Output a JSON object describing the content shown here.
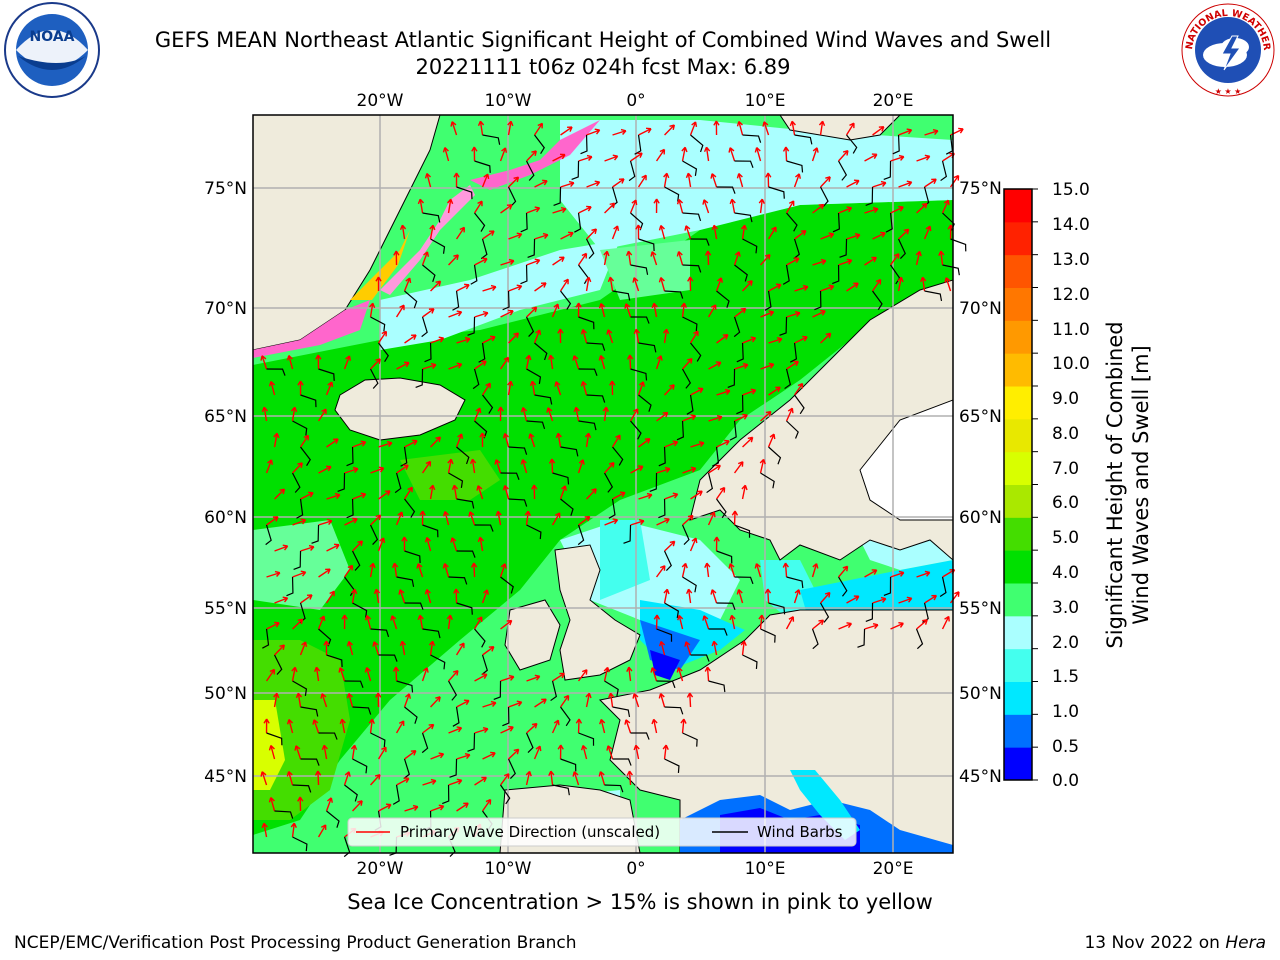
{
  "header": {
    "title": "GEFS MEAN Northeast Atlantic Significant Height of Combined Wind Waves and Swell",
    "subtitle": "20221111 t06z 024h fcst   Max: 6.89"
  },
  "logos": {
    "left": {
      "name": "noaa-logo",
      "text": "NOAA",
      "ring_text": "NATIONAL OCEANIC AND ATMOSPHERIC ADMINISTRATION · U.S. DEPARTMENT OF COMMERCE"
    },
    "right": {
      "name": "nws-logo",
      "ring_text": "NATIONAL WEATHER SERVICE"
    }
  },
  "map": {
    "lon_labels": [
      "20°W",
      "10°W",
      "0°",
      "10°E",
      "20°E"
    ],
    "lat_labels": [
      "75°N",
      "70°N",
      "65°N",
      "60°N",
      "55°N",
      "50°N",
      "45°N"
    ],
    "legend": [
      {
        "label": "Primary Wave Direction (unscaled)",
        "color": "#ff0000"
      },
      {
        "label": "Wind Barbs",
        "color": "#000000"
      }
    ],
    "colors": {
      "land": "#efebdc",
      "grid": "#b0b0b0",
      "ocean_low": "#40ff40",
      "ocean_mid": "#00e000",
      "ocean_high": "#66ff99"
    }
  },
  "colorbar": {
    "labels": [
      "15.0",
      "14.0",
      "13.0",
      "12.0",
      "11.0",
      "10.0",
      "9.0",
      "8.0",
      "7.0",
      "6.0",
      "5.0",
      "4.0",
      "3.0",
      "2.0",
      "1.5",
      "1.0",
      "0.5",
      "0.0"
    ],
    "colors": [
      "#0000ff",
      "#0070ff",
      "#00e8ff",
      "#44ffee",
      "#aaffff",
      "#40ff70",
      "#00e000",
      "#44dd00",
      "#aae800",
      "#d8ff00",
      "#e8e800",
      "#ffee00",
      "#ffbb00",
      "#ff9900",
      "#ff7700",
      "#ff5500",
      "#ff2200",
      "#ff0000"
    ],
    "title_line1": "Significant Height of Combined",
    "title_line2": "Wind Waves and Swell [m]"
  },
  "caption": "Sea Ice Concentration > 15% is shown in pink to yellow",
  "footer": {
    "left": "NCEP/EMC/Verification Post Processing Product Generation Branch",
    "right_date": "13 Nov 2022 on",
    "right_host": "Hera"
  }
}
